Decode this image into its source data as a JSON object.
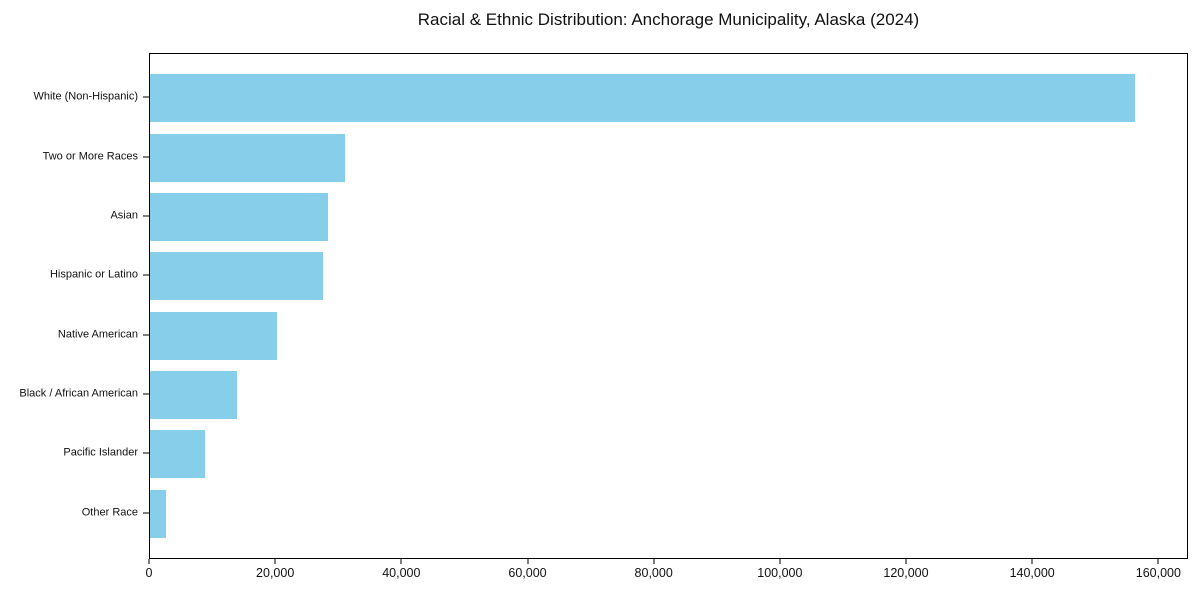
{
  "chart_data": {
    "type": "bar",
    "orientation": "horizontal",
    "title": "Racial & Ethnic Distribution: Anchorage Municipality, Alaska (2024)",
    "categories": [
      "White (Non-Hispanic)",
      "Two or More Races",
      "Asian",
      "Hispanic or Latino",
      "Native American",
      "Black / African American",
      "Pacific Islander",
      "Other Race"
    ],
    "values": [
      156500,
      31000,
      28300,
      27400,
      20100,
      13800,
      8700,
      2600
    ],
    "xlabel": "",
    "ylabel": "",
    "xlim": [
      0,
      164700
    ],
    "x_ticks": [
      0,
      20000,
      40000,
      60000,
      80000,
      100000,
      120000,
      140000,
      160000
    ],
    "x_tick_labels": [
      "0",
      "20,000",
      "40,000",
      "60,000",
      "80,000",
      "100,000",
      "120,000",
      "140,000",
      "160,000"
    ],
    "bar_color": "#87CEEB",
    "axis_color": "#000000",
    "grid": false,
    "legend": "none"
  }
}
